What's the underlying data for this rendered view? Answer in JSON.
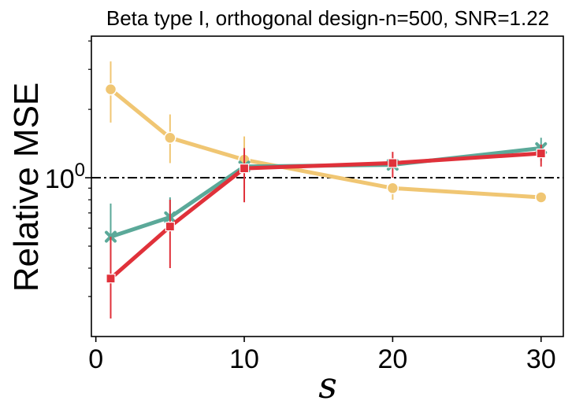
{
  "chart_data": {
    "type": "line",
    "title": "Beta type I, orthogonal design-n=500, SNR=1.22",
    "xlabel": "s",
    "ylabel": "Relative MSE",
    "yscale": "log",
    "xlim": [
      -0.3,
      31.5
    ],
    "ylim": [
      0.2,
      4.2
    ],
    "x_ticks": [
      0,
      10,
      20,
      30
    ],
    "x_tick_labels": [
      "0",
      "10",
      "20",
      "30"
    ],
    "y_major_ticks": [
      1.0
    ],
    "y_tick_labels": [
      {
        "base": "10",
        "exp": "0"
      }
    ],
    "y_minor_ticks": [
      0.3,
      0.4,
      0.5,
      0.6,
      0.7,
      0.8,
      0.9,
      2,
      3,
      4
    ],
    "reference_line": {
      "y": 1.0,
      "style": "dashdot",
      "color": "#000000"
    },
    "x": [
      1,
      5,
      10,
      20,
      30
    ],
    "series": [
      {
        "name": "orange",
        "color": "#f0c673",
        "marker": "circle",
        "values": [
          2.45,
          1.5,
          1.2,
          0.9,
          0.82
        ],
        "err_low": [
          1.75,
          1.16,
          1.0,
          0.8,
          0.78
        ],
        "err_high": [
          3.25,
          1.9,
          1.52,
          0.95,
          0.86
        ]
      },
      {
        "name": "teal",
        "color": "#5ba999",
        "marker": "x",
        "values": [
          0.55,
          0.67,
          1.12,
          1.14,
          1.35
        ],
        "err_low": [
          0.39,
          0.59,
          0.9,
          1.1,
          1.18
        ],
        "err_high": [
          0.77,
          0.82,
          1.35,
          1.18,
          1.5
        ]
      },
      {
        "name": "red",
        "color": "#e0313a",
        "marker": "square",
        "values": [
          0.36,
          0.61,
          1.1,
          1.16,
          1.28
        ],
        "err_low": [
          0.24,
          0.4,
          0.78,
          1.0,
          1.12
        ],
        "err_high": [
          0.55,
          0.8,
          1.35,
          1.3,
          1.4
        ]
      }
    ]
  }
}
